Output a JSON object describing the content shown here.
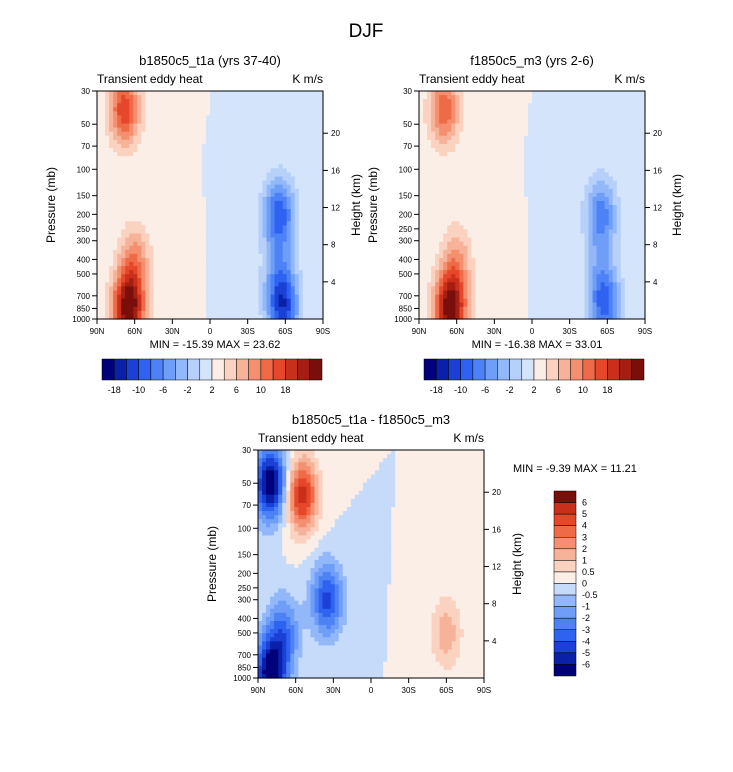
{
  "figure_title": "DJF",
  "colors": {
    "scale_a": [
      "#00007a",
      "#0a20a8",
      "#1a40d6",
      "#2f62f0",
      "#4d82f6",
      "#6f9ef8",
      "#93b8f9",
      "#b7d0fa",
      "#d4e4fb",
      "#fbeee6",
      "#fad2bf",
      "#f7b39a",
      "#f49070",
      "#ef6a47",
      "#e6462a",
      "#c9301b",
      "#a41e12",
      "#7a0e0a"
    ],
    "scale_diff": [
      "#00007a",
      "#0a20a8",
      "#1a40d6",
      "#2f62f0",
      "#4d82f6",
      "#6f9ef8",
      "#93b8f9",
      "#c6dbfa",
      "#fbeee6",
      "#fad2bf",
      "#f7b39a",
      "#f49070",
      "#ef6a47",
      "#e6462a",
      "#c9301b",
      "#7a0e0a"
    ]
  },
  "chart_data": [
    {
      "type": "heatmap",
      "title": "b1850c5_t1a (yrs 37-40)",
      "left_label": "Transient eddy heat",
      "right_label": "K m/s",
      "xlabel": "",
      "ylabel": "Pressure (mb)",
      "y2label": "Height (km)",
      "x_ticks": [
        "90N",
        "60N",
        "30N",
        "0",
        "30S",
        "60S",
        "90S"
      ],
      "y_ticks": [
        "30",
        "50",
        "70",
        "100",
        "150",
        "200",
        "250",
        "300",
        "400",
        "500",
        "700",
        "850",
        "1000"
      ],
      "y2_ticks": [
        "20",
        "16",
        "12",
        "8",
        "4"
      ],
      "min_max_text": "MIN = -15.39  MAX =  23.62",
      "colorbar_labels": [
        "-18",
        "-10",
        "-6",
        "-2",
        "2",
        "6",
        "10",
        "18"
      ],
      "features": [
        {
          "lat": 65,
          "p": 850,
          "value": 22
        },
        {
          "lat": 68,
          "p": 40,
          "value": 14
        },
        {
          "lat": 60,
          "p": 400,
          "value": 8
        },
        {
          "lat": -55,
          "p": 200,
          "value": -14
        },
        {
          "lat": -58,
          "p": 850,
          "value": -15
        },
        {
          "lat": -55,
          "p": 500,
          "value": -6
        }
      ]
    },
    {
      "type": "heatmap",
      "title": "f1850c5_m3 (yrs 2-6)",
      "left_label": "Transient eddy heat",
      "right_label": "K m/s",
      "xlabel": "",
      "ylabel": "Pressure (mb)",
      "y2label": "Height (km)",
      "x_ticks": [
        "90N",
        "60N",
        "30N",
        "0",
        "30S",
        "60S",
        "90S"
      ],
      "y_ticks": [
        "30",
        "50",
        "70",
        "100",
        "150",
        "200",
        "250",
        "300",
        "400",
        "500",
        "700",
        "850",
        "1000"
      ],
      "y2_ticks": [
        "20",
        "16",
        "12",
        "8",
        "4"
      ],
      "min_max_text": "MIN = -16.38  MAX =  33.01",
      "colorbar_labels": [
        "-18",
        "-10",
        "-6",
        "-2",
        "2",
        "6",
        "10",
        "18"
      ],
      "features": [
        {
          "lat": 65,
          "p": 850,
          "value": 30
        },
        {
          "lat": 70,
          "p": 40,
          "value": 16
        },
        {
          "lat": 60,
          "p": 400,
          "value": 9
        },
        {
          "lat": -55,
          "p": 200,
          "value": -15
        },
        {
          "lat": -58,
          "p": 850,
          "value": -16
        },
        {
          "lat": -55,
          "p": 500,
          "value": -7
        }
      ]
    },
    {
      "type": "heatmap",
      "title": "b1850c5_t1a - f1850c5_m3",
      "left_label": "Transient eddy heat",
      "right_label": "K m/s",
      "xlabel": "",
      "ylabel": "Pressure (mb)",
      "y2label": "Height (km)",
      "x_ticks": [
        "90N",
        "60N",
        "30N",
        "0",
        "30S",
        "60S",
        "90S"
      ],
      "y_ticks": [
        "30",
        "50",
        "70",
        "100",
        "150",
        "200",
        "250",
        "300",
        "400",
        "500",
        "700",
        "850",
        "1000"
      ],
      "y2_ticks": [
        "20",
        "16",
        "12",
        "8",
        "4"
      ],
      "min_max_text": "MIN =  -9.39  MAX =  11.21",
      "colorbar_labels": [
        "6",
        "5",
        "4",
        "3",
        "2",
        "1",
        "0.5",
        "0",
        "-0.5",
        "-1",
        "-2",
        "-3",
        "-4",
        "-5",
        "-6"
      ],
      "features": [
        {
          "lat": 80,
          "p": 50,
          "value": -6
        },
        {
          "lat": 55,
          "p": 60,
          "value": 5
        },
        {
          "lat": 35,
          "p": 300,
          "value": -4
        },
        {
          "lat": 70,
          "p": 500,
          "value": -3
        },
        {
          "lat": -60,
          "p": 500,
          "value": 2
        },
        {
          "lat": 80,
          "p": 950,
          "value": -6
        }
      ]
    }
  ]
}
